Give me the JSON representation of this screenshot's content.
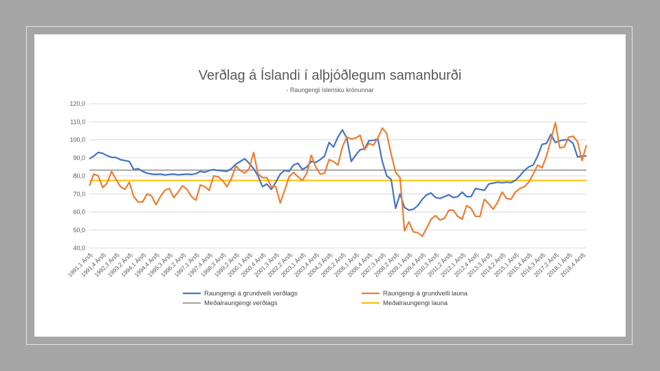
{
  "chart_data": {
    "type": "line",
    "title": "Verðlag á Íslandi í alþjóðlegum samanburði",
    "subtitle": "- Raungengi íslensku krónunnar",
    "ylim": [
      40,
      120
    ],
    "yticks": [
      "40,0",
      "50,0",
      "60,0",
      "70,0",
      "80,0",
      "90,0",
      "100,0",
      "110,0",
      "120,0"
    ],
    "grid": true,
    "legend_position": "bottom",
    "x_tick_labels": [
      "1991,1 Ársfj.",
      "1991,4 Ársfj.",
      "1992,3 Ársfj.",
      "1993,2 Ársfj.",
      "1994,1 Ársfj.",
      "1994,4 Ársfj.",
      "1995,3 Ársfj.",
      "1996,2 Ársfj.",
      "1997,1 Ársfj.",
      "1997,4 Ársfj.",
      "1998,3 Ársfj.",
      "1999,2 Ársfj.",
      "2000,1 Ársfj.",
      "2000,4 Ársfj.",
      "2001,3 Ársfj.",
      "2002,2 Ársfj.",
      "2003,1 Ársfj.",
      "2003,4 Ársfj.",
      "2004,3 Ársfj.",
      "2005,2 Ársfj.",
      "2006,1 Ársfj.",
      "2006,4 Ársfj.",
      "2007,3 Ársfj.",
      "2008,2 Ársfj.",
      "2009,1 Ársfj.",
      "2009,4 Ársfj.",
      "2010,3 Ársfj.",
      "2011,2 Ársfj.",
      "2012,1 Ársfj.",
      "2012,4 Ársfj.",
      "2013,3 Ársfj.",
      "2014,2 Ársfj.",
      "2015,1 Ársfj.",
      "2015,4 Ársfj.",
      "2016,3 Ársfj.",
      "2017,2 Ársfj.",
      "2018,1 Ársfj.",
      "2018,4 Ársfj."
    ],
    "x_tick_every": 3,
    "series": [
      {
        "name": "Raungengi á grundvelli verðlags",
        "color": "#4472c4",
        "kind": "data",
        "values": [
          89.5,
          91,
          93,
          92.5,
          91.2,
          90.3,
          90.2,
          89,
          88.5,
          88,
          83.5,
          84,
          82.5,
          81.5,
          81,
          80.8,
          81,
          80.5,
          80.8,
          81,
          80.6,
          80.8,
          81,
          80.8,
          81.2,
          82.5,
          82,
          83,
          83.5,
          83,
          82.8,
          82.5,
          84,
          86.5,
          88,
          89.5,
          87,
          84,
          80,
          74,
          75.5,
          72.5,
          76.5,
          81,
          83,
          82.5,
          86,
          87,
          83.5,
          85,
          88,
          87.5,
          89,
          91,
          98.5,
          96,
          101.5,
          105.5,
          101,
          88,
          91.5,
          94.5,
          95,
          99.5,
          99.7,
          100.5,
          88,
          80,
          78,
          62,
          70,
          62.5,
          61,
          61.5,
          63.5,
          67,
          69.5,
          70.5,
          68,
          67.5,
          68.5,
          69.5,
          68,
          68.5,
          71,
          68.5,
          68.5,
          73,
          72.5,
          72,
          75.5,
          76,
          76.5,
          76.2,
          76.5,
          76.3,
          77.5,
          80,
          83,
          85,
          86,
          91,
          97.5,
          98,
          103,
          98.5,
          99.5,
          100,
          100,
          98,
          90.5,
          91,
          91
        ]
      },
      {
        "name": "Raungengi á grundvelli launa",
        "color": "#ed7d31",
        "kind": "data",
        "values": [
          74.5,
          81,
          80,
          73.5,
          76,
          82.5,
          78,
          74,
          72.5,
          76.5,
          68.5,
          65.5,
          65.5,
          70,
          69,
          64,
          68.5,
          72,
          73,
          68,
          71,
          74.5,
          72.5,
          68.5,
          66.5,
          75,
          74,
          72,
          80,
          79.5,
          77.5,
          74,
          78.5,
          85.5,
          83,
          81.5,
          84,
          93,
          81,
          79,
          79,
          74,
          74,
          65,
          72,
          79.5,
          82,
          79.5,
          77.5,
          81.5,
          91.5,
          85,
          81,
          81.5,
          89,
          88,
          86,
          96,
          101.5,
          100.5,
          101,
          102.5,
          94.5,
          98,
          97,
          101,
          106.5,
          103.5,
          92,
          82,
          79,
          49.5,
          54.5,
          49,
          48.5,
          46.5,
          51,
          56,
          58,
          55.5,
          56.5,
          61,
          61,
          57.5,
          56,
          63.5,
          62,
          57.5,
          57.5,
          67,
          64.5,
          61.5,
          65.5,
          71,
          67.5,
          67,
          71,
          73,
          74,
          76.5,
          81,
          86,
          84.5,
          91,
          100,
          109.5,
          95.5,
          96,
          101.5,
          102,
          99,
          88.5,
          97
        ]
      },
      {
        "name": "Meðalraungengi verðlags",
        "color": "#a5a5a5",
        "kind": "constant",
        "value": 83.2
      },
      {
        "name": "Meðalraungengi launa",
        "color": "#ffc000",
        "kind": "constant",
        "value": 77.5
      }
    ]
  }
}
